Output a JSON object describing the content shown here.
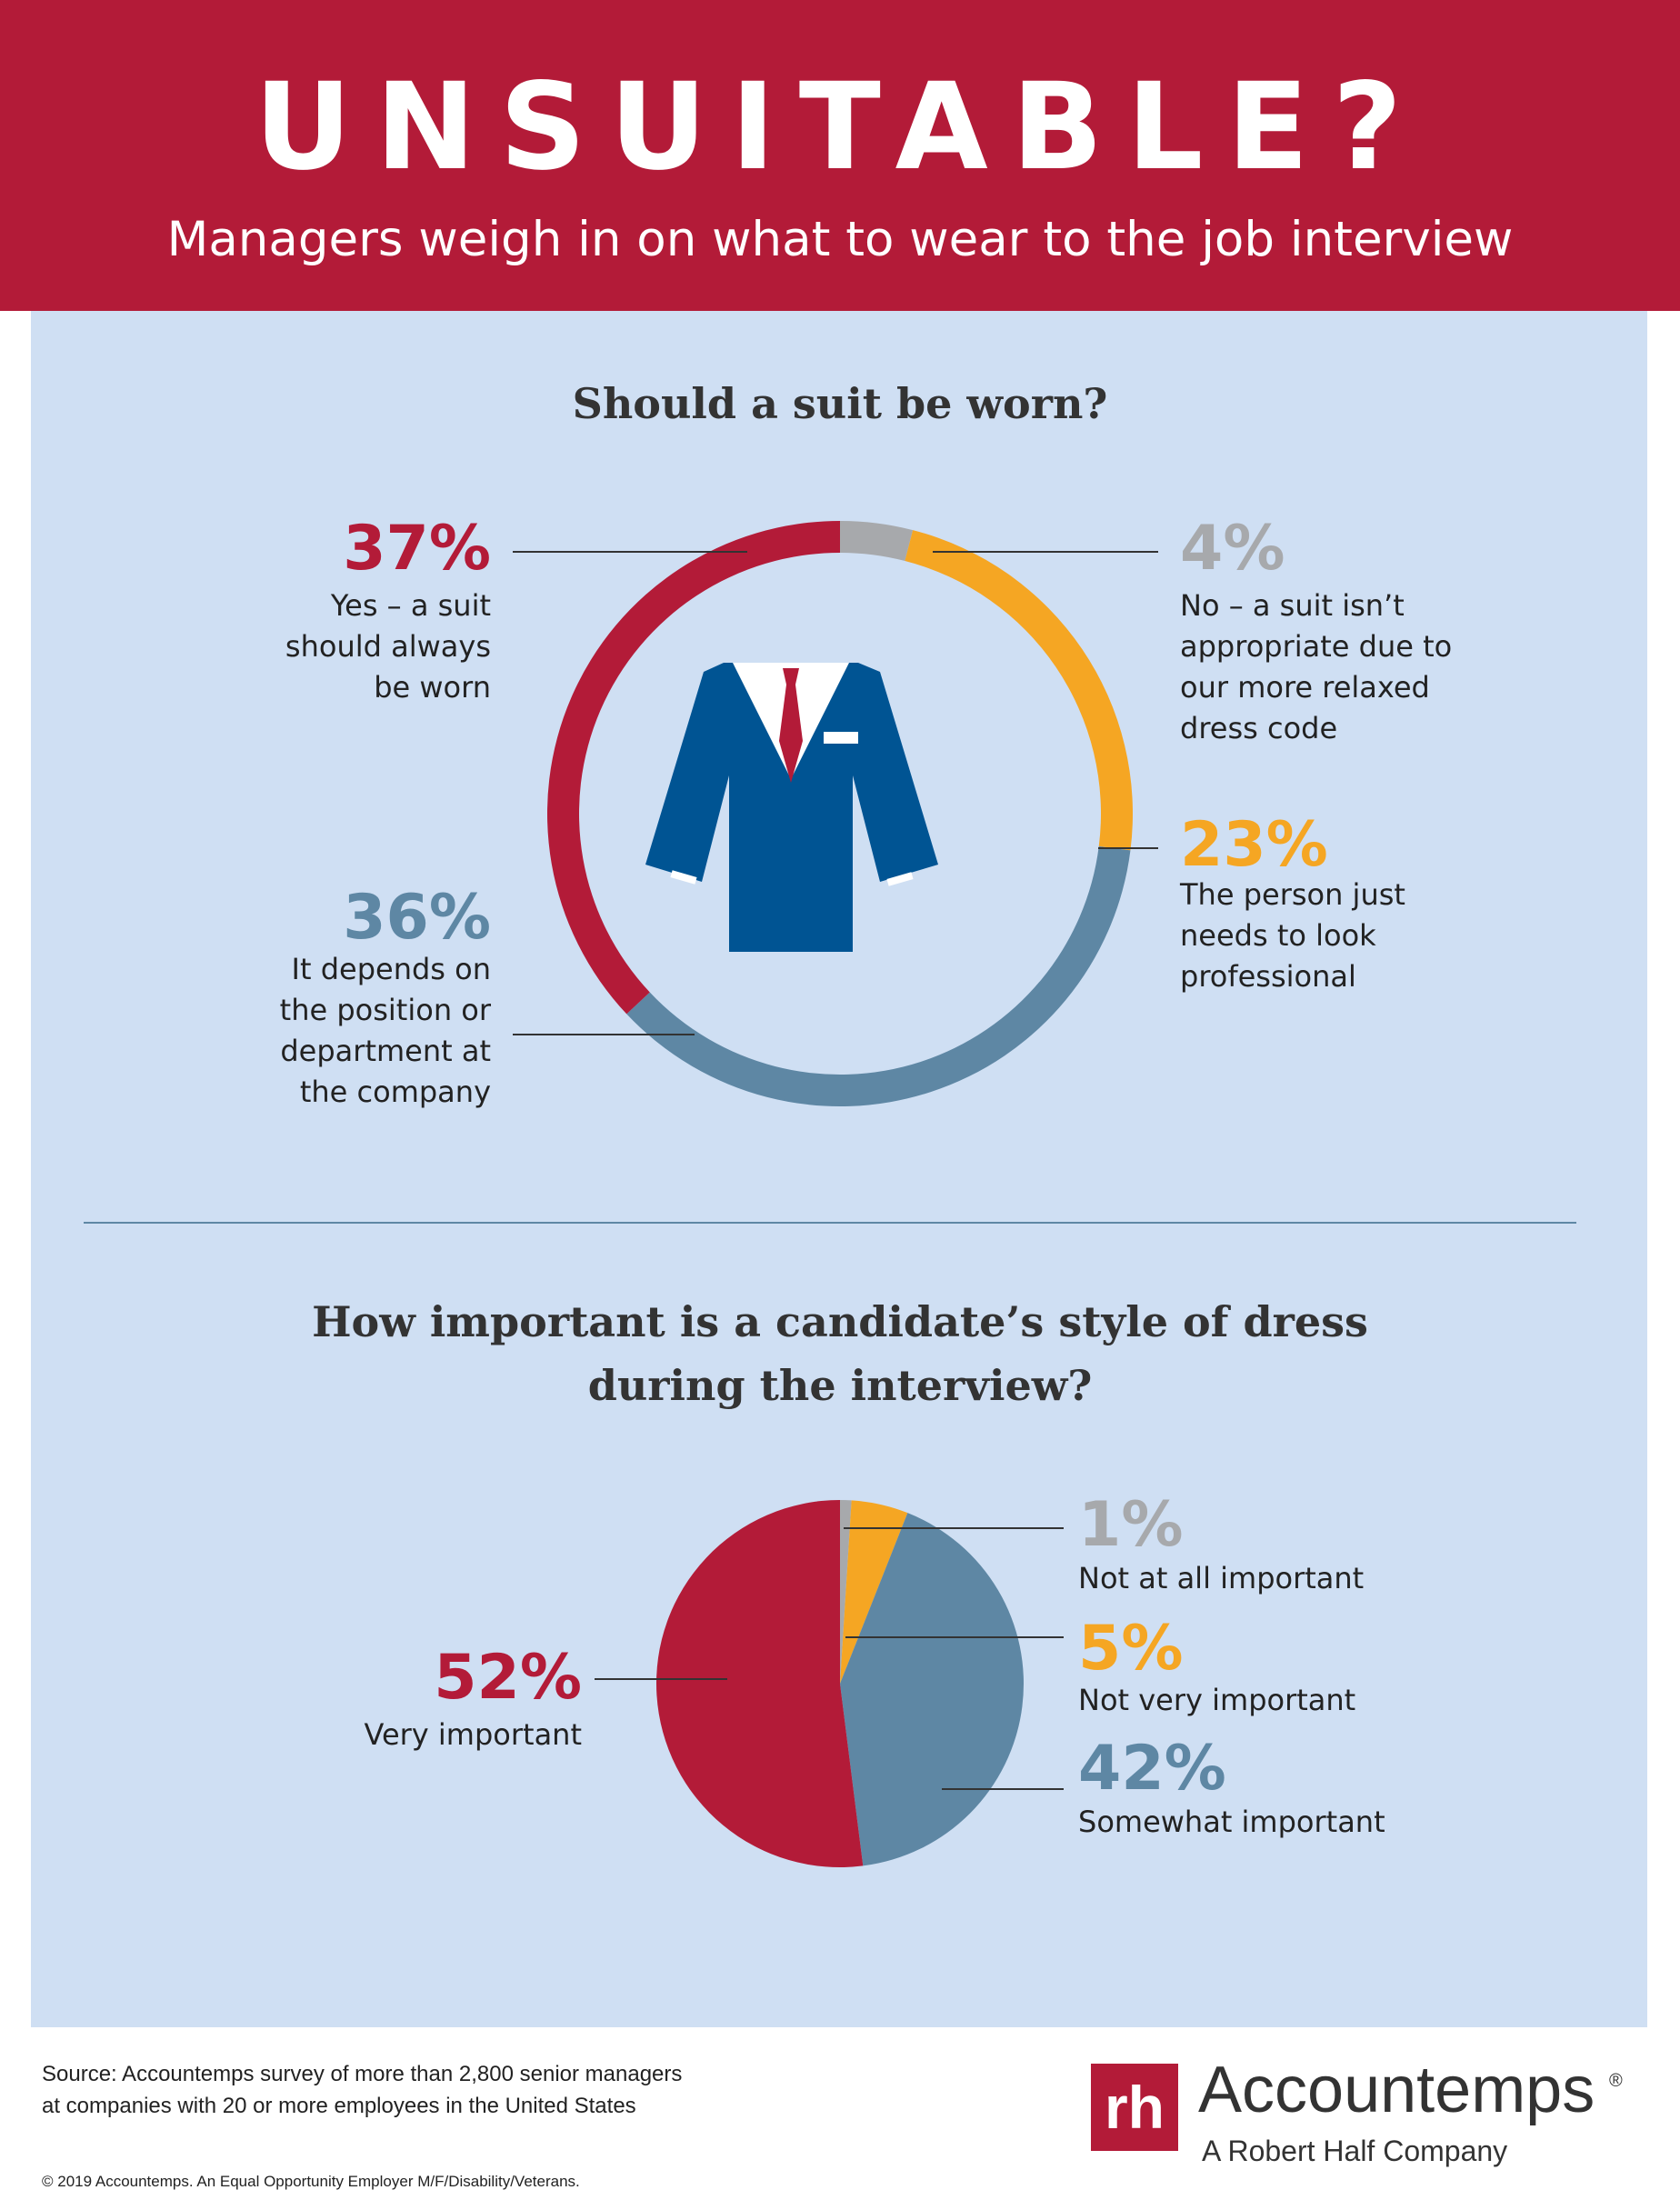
{
  "header": {
    "title": "UNSUITABLE?",
    "subtitle": "Managers weigh in on what to wear to the job interview"
  },
  "colors": {
    "red": "#b31b38",
    "orange": "#f5a623",
    "steel": "#5e87a4",
    "gray": "#a7a9ac",
    "navy": "#005493",
    "panel": "#cfdff3"
  },
  "icons": [
    "suit-jacket-icon"
  ],
  "chart_data": [
    {
      "type": "pie",
      "variant": "donut",
      "title": "Should a suit be worn?",
      "slices": [
        {
          "value": 4,
          "label": "4%",
          "name": "No – a suit isn’t appropriate due to our more relaxed dress code",
          "color": "#a7a9ac"
        },
        {
          "value": 23,
          "label": "23%",
          "name": "The person just needs to look professional",
          "color": "#f5a623"
        },
        {
          "value": 36,
          "label": "36%",
          "name": "It depends on the position or department at the company",
          "color": "#5e87a4"
        },
        {
          "value": 37,
          "label": "37%",
          "name": "Yes – a suit should always be worn",
          "color": "#b31b38"
        }
      ]
    },
    {
      "type": "pie",
      "title": "How important is a candidate’s style of dress during the interview?",
      "slices": [
        {
          "value": 1,
          "label": "1%",
          "name": "Not at all important",
          "color": "#a7a9ac"
        },
        {
          "value": 5,
          "label": "5%",
          "name": "Not very important",
          "color": "#f5a623"
        },
        {
          "value": 42,
          "label": "42%",
          "name": "Somewhat important",
          "color": "#5e87a4"
        },
        {
          "value": 52,
          "label": "52%",
          "name": "Very important",
          "color": "#b31b38"
        }
      ]
    }
  ],
  "callouts1": {
    "yes_pct": "37%",
    "yes_l1": "Yes – a suit",
    "yes_l2": "should always",
    "yes_l3": "be worn",
    "no_pct": "4%",
    "no_l1": "No – a suit isn’t",
    "no_l2": "appropriate due to",
    "no_l3": "our more relaxed",
    "no_l4": "dress code",
    "prof_pct": "23%",
    "prof_l1": "The person just",
    "prof_l2": "needs to look",
    "prof_l3": "professional",
    "dep_pct": "36%",
    "dep_l1": "It depends on",
    "dep_l2": "the position or",
    "dep_l3": "department at",
    "dep_l4": "the company"
  },
  "callouts2": {
    "q_line1": "How important is a candidate’s style of dress",
    "q_line2": "during the interview?",
    "na_pct": "1%",
    "na_label": "Not at all important",
    "nv_pct": "5%",
    "nv_label": "Not very important",
    "sw_pct": "42%",
    "sw_label": "Somewhat important",
    "vi_pct": "52%",
    "vi_label": "Very important"
  },
  "footer": {
    "source_l1": "Source: Accountemps survey of more than 2,800 senior managers",
    "source_l2": "at companies with 20 or more employees in the United States",
    "copyright": "© 2019 Accountemps. An Equal Opportunity Employer M/F/Disability/Veterans.",
    "logo_mark": "rh",
    "logo_name": "Accountemps",
    "logo_reg": "®",
    "logo_tagline": "A Robert Half Company"
  }
}
